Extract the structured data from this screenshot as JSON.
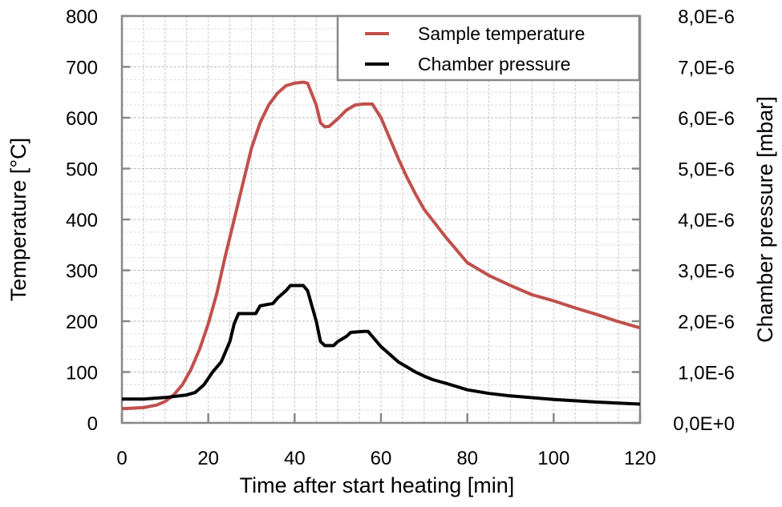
{
  "chart_data": {
    "type": "line",
    "xlabel": "Time after start heating [min]",
    "ylabel": "Temperature [°C]",
    "y2label": "Chamber pressure [mbar]",
    "xlim": [
      0,
      120
    ],
    "ylim": [
      0,
      800
    ],
    "y2lim": [
      0,
      8e-06
    ],
    "x_ticks": [
      "0",
      "20",
      "40",
      "60",
      "80",
      "100",
      "120"
    ],
    "y_ticks": [
      "0",
      "100",
      "200",
      "300",
      "400",
      "500",
      "600",
      "700",
      "800"
    ],
    "y2_ticks": [
      "0,0E+0",
      "1,0E-6",
      "2,0E-6",
      "3,0E-6",
      "4,0E-6",
      "5,0E-6",
      "6,0E-6",
      "7,0E-6",
      "8,0E-6"
    ],
    "grid": true,
    "legend_position": "top-right",
    "series": [
      {
        "name": "Sample temperature",
        "axis": "left",
        "color": "#c0504d",
        "x": [
          0,
          5,
          8,
          10,
          12,
          14,
          16,
          18,
          20,
          22,
          24,
          26,
          28,
          30,
          32,
          34,
          36,
          38,
          40,
          42,
          43,
          45,
          46,
          47,
          48,
          50,
          52,
          54,
          56,
          58,
          60,
          62,
          64,
          66,
          68,
          70,
          75,
          80,
          85,
          90,
          95,
          100,
          105,
          110,
          115,
          120
        ],
        "y": [
          28,
          30,
          35,
          42,
          55,
          75,
          105,
          145,
          195,
          255,
          330,
          400,
          470,
          540,
          590,
          625,
          648,
          663,
          668,
          670,
          668,
          625,
          590,
          582,
          583,
          598,
          615,
          625,
          627,
          627,
          600,
          560,
          520,
          483,
          450,
          420,
          365,
          315,
          290,
          270,
          252,
          240,
          226,
          213,
          199,
          187
        ]
      },
      {
        "name": "Chamber pressure",
        "axis": "right",
        "color": "#000000",
        "x": [
          0,
          5,
          10,
          15,
          17,
          19,
          21,
          23,
          25,
          26,
          27,
          28,
          31,
          32,
          35,
          36,
          38,
          39,
          42,
          43,
          45,
          46,
          47,
          49,
          50,
          52,
          53,
          56,
          57,
          58,
          60,
          62,
          64,
          66,
          68,
          70,
          72,
          75,
          80,
          85,
          90,
          100,
          110,
          120
        ],
        "y": [
          4.7e-07,
          4.7e-07,
          5e-07,
          5.5e-07,
          6e-07,
          7.5e-07,
          1e-06,
          1.2e-06,
          1.6e-06,
          1.95e-06,
          2.15e-06,
          2.15e-06,
          2.15e-06,
          2.3e-06,
          2.35e-06,
          2.45e-06,
          2.6e-06,
          2.7e-06,
          2.7e-06,
          2.6e-06,
          2e-06,
          1.6e-06,
          1.52e-06,
          1.52e-06,
          1.6e-06,
          1.7e-06,
          1.78e-06,
          1.8e-06,
          1.8e-06,
          1.7e-06,
          1.5e-06,
          1.35e-06,
          1.2e-06,
          1.1e-06,
          1e-06,
          9.2e-07,
          8.5e-07,
          7.8e-07,
          6.5e-07,
          5.8e-07,
          5.3e-07,
          4.6e-07,
          4.1e-07,
          3.7e-07
        ]
      }
    ]
  }
}
